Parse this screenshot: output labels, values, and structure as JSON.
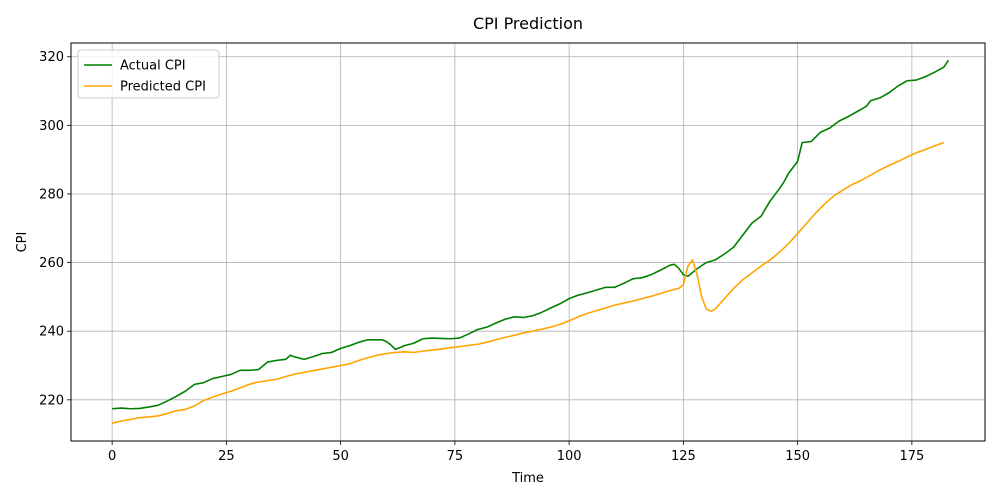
{
  "chart_data": {
    "type": "line",
    "title": "CPI Prediction",
    "xlabel": "Time",
    "ylabel": "CPI",
    "xlim": [
      -9,
      191
    ],
    "ylim": [
      208,
      324
    ],
    "xticks": [
      0,
      25,
      50,
      75,
      100,
      125,
      150,
      175
    ],
    "yticks": [
      220,
      240,
      260,
      280,
      300,
      320
    ],
    "grid": true,
    "legend_position": "top-left",
    "series": [
      {
        "name": "Actual CPI",
        "color": "#008000",
        "points": [
          [
            0,
            217.4
          ],
          [
            2,
            217.6
          ],
          [
            4,
            217.4
          ],
          [
            6,
            217.5
          ],
          [
            8,
            217.9
          ],
          [
            10,
            218.4
          ],
          [
            12,
            219.6
          ],
          [
            14,
            221.0
          ],
          [
            16,
            222.5
          ],
          [
            18,
            224.5
          ],
          [
            20,
            225.0
          ],
          [
            22,
            226.2
          ],
          [
            24,
            226.8
          ],
          [
            26,
            227.4
          ],
          [
            28,
            228.6
          ],
          [
            30,
            228.6
          ],
          [
            32,
            228.8
          ],
          [
            34,
            231.0
          ],
          [
            36,
            231.5
          ],
          [
            38,
            231.8
          ],
          [
            39,
            233.0
          ],
          [
            40,
            232.5
          ],
          [
            42,
            231.8
          ],
          [
            44,
            232.6
          ],
          [
            46,
            233.5
          ],
          [
            48,
            233.8
          ],
          [
            50,
            235.0
          ],
          [
            52,
            235.8
          ],
          [
            54,
            236.8
          ],
          [
            56,
            237.5
          ],
          [
            58,
            237.5
          ],
          [
            59,
            237.5
          ],
          [
            60,
            237.0
          ],
          [
            61,
            236.0
          ],
          [
            62,
            234.7
          ],
          [
            64,
            235.8
          ],
          [
            66,
            236.5
          ],
          [
            68,
            237.8
          ],
          [
            70,
            238.0
          ],
          [
            72,
            237.9
          ],
          [
            74,
            237.8
          ],
          [
            76,
            238.0
          ],
          [
            78,
            239.2
          ],
          [
            80,
            240.5
          ],
          [
            82,
            241.2
          ],
          [
            84,
            242.4
          ],
          [
            86,
            243.5
          ],
          [
            88,
            244.2
          ],
          [
            90,
            244.0
          ],
          [
            92,
            244.5
          ],
          [
            94,
            245.5
          ],
          [
            96,
            246.8
          ],
          [
            98,
            248.0
          ],
          [
            100,
            249.5
          ],
          [
            102,
            250.5
          ],
          [
            104,
            251.2
          ],
          [
            106,
            252.0
          ],
          [
            108,
            252.8
          ],
          [
            110,
            252.8
          ],
          [
            112,
            254.0
          ],
          [
            114,
            255.3
          ],
          [
            116,
            255.6
          ],
          [
            118,
            256.5
          ],
          [
            120,
            257.8
          ],
          [
            122,
            259.2
          ],
          [
            123,
            259.5
          ],
          [
            124,
            258.3
          ],
          [
            125,
            256.5
          ],
          [
            126,
            256.0
          ],
          [
            128,
            258.2
          ],
          [
            130,
            260.0
          ],
          [
            132,
            260.8
          ],
          [
            134,
            262.5
          ],
          [
            136,
            264.5
          ],
          [
            138,
            268.0
          ],
          [
            140,
            271.5
          ],
          [
            142,
            273.5
          ],
          [
            144,
            278.0
          ],
          [
            146,
            281.5
          ],
          [
            147,
            283.5
          ],
          [
            148,
            286.0
          ],
          [
            150,
            289.5
          ],
          [
            151,
            295.0
          ],
          [
            153,
            295.3
          ],
          [
            155,
            298.0
          ],
          [
            157,
            299.2
          ],
          [
            159,
            301.2
          ],
          [
            161,
            302.5
          ],
          [
            163,
            304.0
          ],
          [
            165,
            305.5
          ],
          [
            166,
            307.2
          ],
          [
            168,
            308.0
          ],
          [
            170,
            309.5
          ],
          [
            172,
            311.5
          ],
          [
            174,
            313.0
          ],
          [
            176,
            313.2
          ],
          [
            178,
            314.2
          ],
          [
            180,
            315.5
          ],
          [
            182,
            317.0
          ],
          [
            183,
            319.0
          ]
        ]
      },
      {
        "name": "Predicted CPI",
        "color": "#FFA500",
        "points": [
          [
            0,
            213.2
          ],
          [
            2,
            213.8
          ],
          [
            4,
            214.3
          ],
          [
            6,
            214.8
          ],
          [
            8,
            215.0
          ],
          [
            10,
            215.3
          ],
          [
            12,
            216.0
          ],
          [
            14,
            216.8
          ],
          [
            16,
            217.2
          ],
          [
            18,
            218.2
          ],
          [
            20,
            219.8
          ],
          [
            22,
            220.8
          ],
          [
            24,
            221.7
          ],
          [
            26,
            222.5
          ],
          [
            28,
            223.5
          ],
          [
            30,
            224.5
          ],
          [
            32,
            225.2
          ],
          [
            34,
            225.6
          ],
          [
            36,
            226.0
          ],
          [
            38,
            226.8
          ],
          [
            40,
            227.5
          ],
          [
            42,
            228.0
          ],
          [
            44,
            228.5
          ],
          [
            46,
            229.0
          ],
          [
            48,
            229.5
          ],
          [
            50,
            230.0
          ],
          [
            52,
            230.5
          ],
          [
            54,
            231.5
          ],
          [
            56,
            232.3
          ],
          [
            58,
            233.0
          ],
          [
            60,
            233.5
          ],
          [
            62,
            233.8
          ],
          [
            64,
            234.0
          ],
          [
            66,
            233.8
          ],
          [
            68,
            234.2
          ],
          [
            70,
            234.5
          ],
          [
            72,
            234.8
          ],
          [
            74,
            235.2
          ],
          [
            76,
            235.5
          ],
          [
            78,
            235.9
          ],
          [
            80,
            236.2
          ],
          [
            82,
            236.8
          ],
          [
            84,
            237.5
          ],
          [
            86,
            238.2
          ],
          [
            88,
            238.8
          ],
          [
            90,
            239.5
          ],
          [
            92,
            240.0
          ],
          [
            94,
            240.6
          ],
          [
            96,
            241.2
          ],
          [
            98,
            242.0
          ],
          [
            100,
            243.0
          ],
          [
            102,
            244.2
          ],
          [
            104,
            245.2
          ],
          [
            106,
            246.0
          ],
          [
            108,
            246.8
          ],
          [
            110,
            247.6
          ],
          [
            112,
            248.2
          ],
          [
            114,
            248.8
          ],
          [
            116,
            249.5
          ],
          [
            118,
            250.2
          ],
          [
            120,
            251.0
          ],
          [
            122,
            251.8
          ],
          [
            124,
            252.5
          ],
          [
            125,
            253.5
          ],
          [
            126,
            259.0
          ],
          [
            127,
            260.8
          ],
          [
            128,
            256.5
          ],
          [
            129,
            250.0
          ],
          [
            130,
            246.5
          ],
          [
            131,
            245.8
          ],
          [
            132,
            246.5
          ],
          [
            134,
            249.5
          ],
          [
            136,
            252.5
          ],
          [
            138,
            255.0
          ],
          [
            140,
            257.0
          ],
          [
            142,
            259.0
          ],
          [
            144,
            260.8
          ],
          [
            146,
            263.0
          ],
          [
            148,
            265.5
          ],
          [
            150,
            268.5
          ],
          [
            152,
            271.5
          ],
          [
            154,
            274.5
          ],
          [
            156,
            277.2
          ],
          [
            158,
            279.5
          ],
          [
            160,
            281.2
          ],
          [
            162,
            282.8
          ],
          [
            164,
            284.0
          ],
          [
            166,
            285.5
          ],
          [
            168,
            287.0
          ],
          [
            170,
            288.3
          ],
          [
            172,
            289.5
          ],
          [
            174,
            290.8
          ],
          [
            176,
            292.0
          ],
          [
            178,
            293.0
          ],
          [
            180,
            294.0
          ],
          [
            182,
            295.0
          ]
        ]
      }
    ]
  }
}
